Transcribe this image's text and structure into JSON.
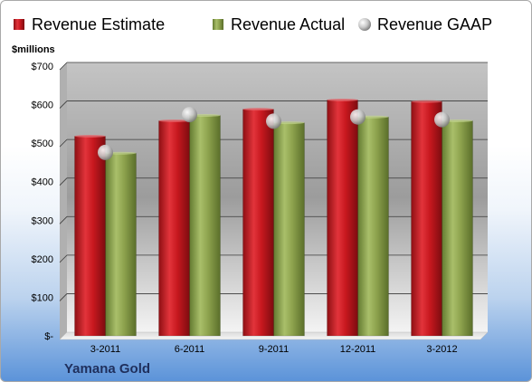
{
  "chart_data": {
    "type": "bar",
    "categories": [
      "3-2011",
      "6-2011",
      "9-2011",
      "12-2011",
      "3-2012"
    ],
    "series": [
      {
        "name": "Revenue Estimate",
        "style": "bar",
        "color": "#c0141c",
        "values": [
          518,
          558,
          588,
          612,
          608
        ]
      },
      {
        "name": "Revenue Actual",
        "style": "bar",
        "color": "#8aa04a",
        "values": [
          474,
          572,
          553,
          568,
          558
        ]
      },
      {
        "name": "Revenue GAAP",
        "style": "marker",
        "color": "#c8c8c8",
        "values": [
          476,
          574,
          557,
          568,
          561
        ]
      }
    ],
    "ylabel": "$millions",
    "ylim": [
      0,
      700
    ],
    "yticks": [
      0,
      100,
      200,
      300,
      400,
      500,
      600,
      700
    ],
    "ytick_labels": [
      "$-",
      "$100",
      "$200",
      "$300",
      "$400",
      "$500",
      "$600",
      "$700"
    ],
    "grid": true,
    "legend_position": "top",
    "company": "Yamana Gold"
  }
}
